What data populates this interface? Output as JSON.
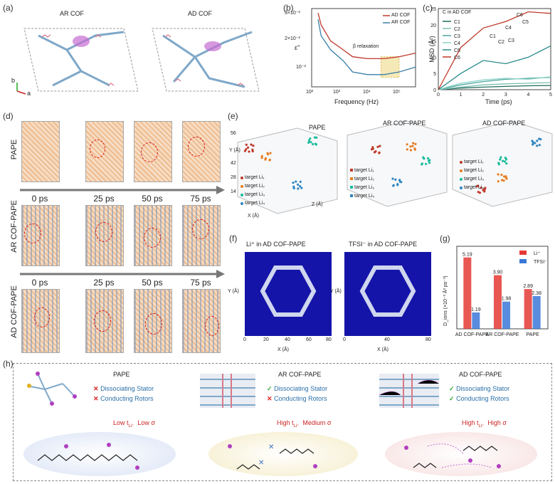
{
  "panels": {
    "a": {
      "label": "(a)",
      "left_title": "AR COF",
      "right_title": "AD COF",
      "axis_b": "b",
      "axis_a": "a"
    },
    "b": {
      "label": "(b)",
      "ylabel": "ε''",
      "xlabel": "Frequency (Hz)",
      "annotation": "β relaxation",
      "legend": [
        "AD COF",
        "AR COF"
      ],
      "yticks": [
        "3×10⁻²",
        "2×10⁻²",
        "10⁻²"
      ],
      "xticks": [
        "10²",
        "10³",
        "10⁴",
        "10⁵"
      ]
    },
    "c": {
      "label": "(c)",
      "title": "C in AD COF",
      "ylabel": "MSD (Å²)",
      "xlabel": "Time (ps)",
      "legend": [
        "C1",
        "C2",
        "C3",
        "C4",
        "C5",
        "C6"
      ],
      "yticks": [
        "0",
        "5",
        "10",
        "15",
        "20",
        "25"
      ],
      "xticks": [
        "0",
        "1",
        "2",
        "3",
        "4",
        "5"
      ],
      "struct_labels": [
        "C6",
        "C5",
        "C4",
        "C1",
        "C2",
        "C3"
      ]
    },
    "d": {
      "label": "(d)",
      "rows": [
        "PAPE",
        "AR COF-PAPE",
        "AD COF-PAPE"
      ],
      "times": [
        "0 ps",
        "25 ps",
        "50 ps",
        "75 ps"
      ]
    },
    "e": {
      "label": "(e)",
      "titles": [
        "PAPE",
        "AR COF-PAPE",
        "AD COF-PAPE"
      ],
      "legend": [
        "target Li₁",
        "target Li₂",
        "target Li₃",
        "target Li₄"
      ],
      "axes": {
        "x": "X (Å)",
        "y": "Y (Å)",
        "z": "Z (Å)"
      },
      "yticks": [
        "56",
        "42",
        "28",
        "14"
      ]
    },
    "f": {
      "label": "(f)",
      "left_title": "Li⁺ in AD COF-PAPE",
      "right_title": "TFSI⁻ in AD COF-PAPE",
      "xlabel": "X (Å)",
      "ylabel": "Y (Å)",
      "ticks": [
        "0",
        "20",
        "40",
        "60",
        "80"
      ]
    },
    "g": {
      "label": "(g)",
      "ylabel": "D_ions (×10⁻³ Å² ps⁻¹)",
      "legend": [
        "Li⁺",
        "TFSI⁻"
      ]
    },
    "h": {
      "label": "(h)",
      "cols": [
        {
          "title": "PAPE",
          "stator": "Dissociating Stator",
          "rotors": "Conducting Rotors",
          "stator_mark": "✕",
          "rotor_mark": "✕",
          "result_a": "Low t",
          "result_b": "Low σ"
        },
        {
          "title": "AR COF-PAPE",
          "stator": "Dissociating Stator",
          "rotors": "Conducting Rotors",
          "stator_mark": "✓",
          "rotor_mark": "✕",
          "result_a": "High t",
          "result_b": "Medium σ"
        },
        {
          "title": "AD COF-PAPE",
          "stator": "Dissociating Stator",
          "rotors": "Conducting Rotors",
          "stator_mark": "✓",
          "rotor_mark": "✓",
          "result_a": "High t",
          "result_b": "High σ"
        }
      ]
    }
  },
  "chart_data": [
    {
      "type": "bar",
      "title": "",
      "categories": [
        "AD COF-PAPE",
        "AR COF-PAPE",
        "PAPE"
      ],
      "series": [
        {
          "name": "Li⁺",
          "values": [
            5.19,
            3.9,
            2.89
          ]
        },
        {
          "name": "TFSI⁻",
          "values": [
            1.19,
            1.98,
            2.38
          ]
        }
      ],
      "ylim": [
        0,
        6
      ],
      "colors": [
        "#e53935",
        "#3b78d8"
      ]
    },
    {
      "type": "line",
      "title": "",
      "x": [
        80,
        100,
        200,
        500,
        1000,
        3000,
        10000,
        30000,
        100000
      ],
      "series": [
        {
          "name": "AD COF",
          "values": [
            0.032,
            0.025,
            0.018,
            0.015,
            0.013,
            0.0125,
            0.0125,
            0.013,
            0.014
          ]
        },
        {
          "name": "AR COF",
          "values": [
            0.028,
            0.02,
            0.015,
            0.012,
            0.0095,
            0.009,
            0.009,
            0.0095,
            0.0105
          ]
        }
      ],
      "colors": [
        "#c0392b",
        "#3a7fa8"
      ]
    },
    {
      "type": "line",
      "title": "C in AD COF",
      "x": [
        0,
        1,
        2,
        3,
        4,
        5
      ],
      "series": [
        {
          "name": "C1",
          "values": [
            0,
            0.5,
            0.8,
            1.0,
            1.2,
            1.3
          ]
        },
        {
          "name": "C2",
          "values": [
            0,
            0.8,
            1.5,
            1.8,
            2.0,
            2.2
          ]
        },
        {
          "name": "C3",
          "values": [
            0,
            1.5,
            2.5,
            3.2,
            3.5,
            3.8
          ]
        },
        {
          "name": "C4",
          "values": [
            0,
            2.0,
            3.0,
            3.5,
            3.2,
            4.0
          ]
        },
        {
          "name": "C5",
          "values": [
            0,
            5.0,
            9.0,
            8.0,
            10.0,
            13.5
          ]
        },
        {
          "name": "C6",
          "values": [
            0,
            13.0,
            19.0,
            21.0,
            24.0,
            23.5
          ]
        }
      ],
      "colors": [
        "#1e6b5a",
        "#7fbfb2",
        "#4aa6a0",
        "#8fd3c8",
        "#2a8a8a",
        "#c0392b"
      ],
      "ylim": [
        0,
        25
      ],
      "xlim": [
        0,
        5
      ]
    }
  ]
}
